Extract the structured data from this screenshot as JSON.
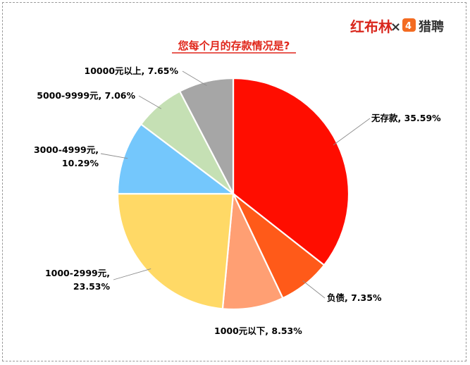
{
  "logo": {
    "brand_left": "红布林",
    "brand_left_tagline": "",
    "separator": "×",
    "brand_right": "猎聘",
    "brand_right_icon_color": "#f36b21"
  },
  "chart_data": {
    "type": "pie",
    "title": "您每个月的存款情况是?",
    "start_angle_deg": 0,
    "direction": "clockwise",
    "slices": [
      {
        "label": "无存款",
        "value": 35.59,
        "display": "35.59%",
        "color": "#ff0d00"
      },
      {
        "label": "负债",
        "value": 7.35,
        "display": "7.35%",
        "color": "#ff5a19"
      },
      {
        "label": "1000元以下",
        "value": 8.53,
        "display": "8.53%",
        "color": "#ff9f73"
      },
      {
        "label": "1000-2999元",
        "value": 23.53,
        "display": "23.53%",
        "color": "#ffd966"
      },
      {
        "label": "3000-4999元",
        "value": 10.29,
        "display": "10.29%",
        "color": "#74c7fc"
      },
      {
        "label": "5000-9999元",
        "value": 7.06,
        "display": "7.06%",
        "color": "#c5e0b4"
      },
      {
        "label": "10000元以上",
        "value": 7.65,
        "display": "7.65%",
        "color": "#a6a6a6"
      }
    ]
  }
}
